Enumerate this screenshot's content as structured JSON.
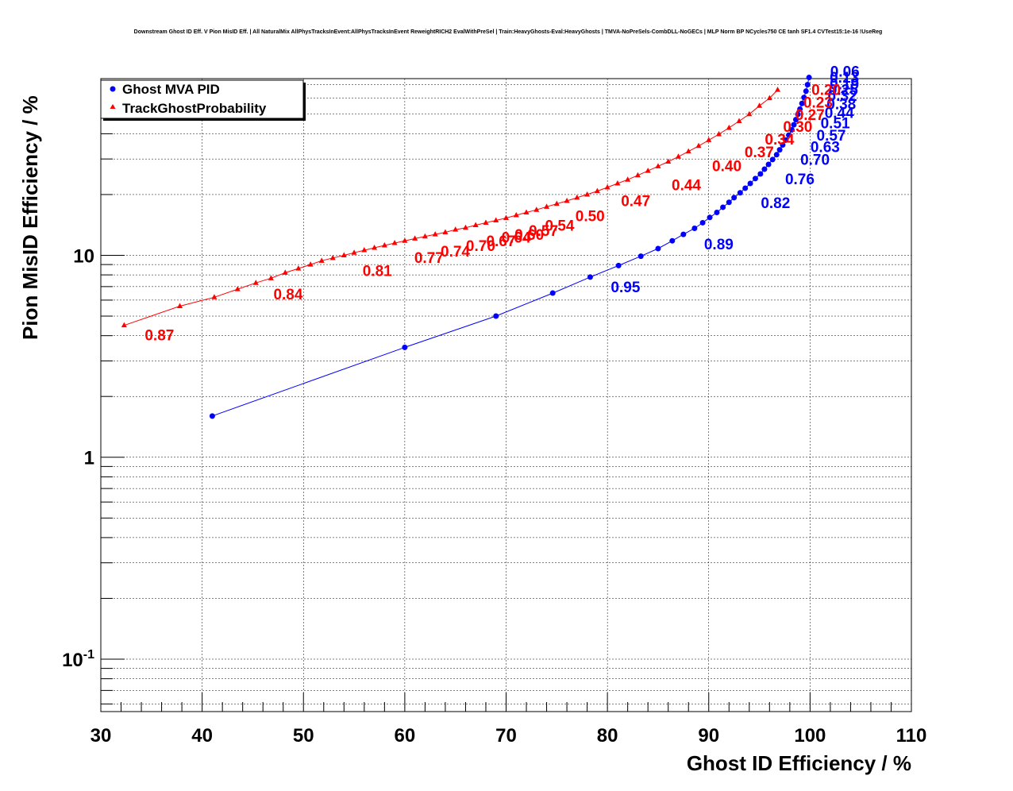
{
  "chart_data": {
    "type": "scatter",
    "title": "Downstream Ghost ID Eff. V Pion MisID Eff. | All NaturalMix AllPhysTracksInEvent:AllPhysTracksInEvent ReweightRICH2 EvalWithPreSel | Train:HeavyGhosts-Eval:HeavyGhosts | TMVA-NoPreSels-CombDLL-NoGECs | MLP Norm BP NCycles750 CE tanh SF1.4 CVTest15:1e-16 !UseReg",
    "xlabel": "Ghost ID Efficiency / %",
    "ylabel": "Pion MisID Efficiency / %",
    "xlim": [
      30,
      110
    ],
    "ylim": [
      0.055,
      75
    ],
    "yscale": "log",
    "grid": true,
    "legend_position": "top-left",
    "x_ticks": [
      "30",
      "40",
      "50",
      "60",
      "70",
      "80",
      "90",
      "100",
      "110"
    ],
    "y_ticks": [
      {
        "value": 0.1,
        "base": "10",
        "exp": "-1"
      },
      {
        "value": 1,
        "base": "1",
        "exp": ""
      },
      {
        "value": 10,
        "base": "10",
        "exp": ""
      }
    ],
    "series": [
      {
        "name": "Ghost MVA PID",
        "color": "#0000ff",
        "marker": "circle",
        "x": [
          41.0,
          60.0,
          69.0,
          74.6,
          78.3,
          81.1,
          83.3,
          85.0,
          86.4,
          87.5,
          88.6,
          89.4,
          90.1,
          90.8,
          91.4,
          92.0,
          92.5,
          93.1,
          93.6,
          94.1,
          94.6,
          95.1,
          95.5,
          95.9,
          96.3,
          96.7,
          97.0,
          97.3,
          97.6,
          97.9,
          98.2,
          98.4,
          98.6,
          98.8,
          99.0,
          99.2,
          99.4,
          99.6,
          99.75,
          99.9
        ],
        "y": [
          1.6,
          3.5,
          5.0,
          6.5,
          7.8,
          8.9,
          9.9,
          10.8,
          11.8,
          12.7,
          13.6,
          14.5,
          15.4,
          16.3,
          17.3,
          18.3,
          19.3,
          20.4,
          21.5,
          22.7,
          24.0,
          25.3,
          26.7,
          28.2,
          29.8,
          31.5,
          33.3,
          35.2,
          37.2,
          39.4,
          41.8,
          44.3,
          47.0,
          49.9,
          53.0,
          56.5,
          60.5,
          65.0,
          70.0,
          76.0
        ],
        "labels": [
          {
            "text": "0.95",
            "x": 78.3,
            "y": 7.8
          },
          {
            "text": "0.89",
            "x": 87.5,
            "y": 12.7
          },
          {
            "text": "0.82",
            "x": 93.1,
            "y": 20.4
          },
          {
            "text": "0.76",
            "x": 95.5,
            "y": 26.7
          },
          {
            "text": "0.70",
            "x": 97.0,
            "y": 33.3
          },
          {
            "text": "0.63",
            "x": 98.0,
            "y": 38.5
          },
          {
            "text": "0.57",
            "x": 98.6,
            "y": 44.0
          },
          {
            "text": "0.51",
            "x": 99.0,
            "y": 50.5
          },
          {
            "text": "0.44",
            "x": 99.4,
            "y": 57.0
          },
          {
            "text": "0.38",
            "x": 99.6,
            "y": 63.0
          },
          {
            "text": "0.32",
            "x": 99.7,
            "y": 69.0
          },
          {
            "text": "0.25",
            "x": 99.8,
            "y": 74.0
          },
          {
            "text": "0.19",
            "x": 99.9,
            "y": 79.0
          },
          {
            "text": "0.13",
            "x": 99.9,
            "y": 85.0
          },
          {
            "text": "0.06",
            "x": 99.95,
            "y": 91.0
          }
        ]
      },
      {
        "name": "TrackGhostProbability",
        "color": "#ff0000",
        "marker": "triangle",
        "x": [
          32.3,
          37.8,
          41.2,
          43.5,
          45.3,
          46.8,
          48.2,
          49.5,
          50.7,
          51.8,
          52.9,
          54.0,
          55.0,
          56.0,
          57.0,
          58.0,
          59.0,
          60.0,
          61.0,
          62.0,
          63.0,
          64.0,
          65.0,
          66.0,
          67.0,
          68.0,
          69.0,
          70.0,
          71.0,
          72.0,
          73.0,
          74.0,
          75.0,
          76.0,
          77.0,
          78.0,
          79.0,
          80.0,
          81.0,
          82.0,
          83.0,
          84.0,
          85.0,
          86.0,
          87.0,
          88.0,
          89.0,
          90.0,
          91.0,
          92.0,
          93.0,
          94.0,
          95.0,
          96.0,
          96.8
        ],
        "y": [
          4.5,
          5.6,
          6.2,
          6.8,
          7.3,
          7.7,
          8.2,
          8.6,
          9.0,
          9.4,
          9.7,
          10.0,
          10.3,
          10.6,
          10.9,
          11.2,
          11.5,
          11.8,
          12.1,
          12.4,
          12.7,
          13.0,
          13.4,
          13.7,
          14.1,
          14.5,
          14.9,
          15.3,
          15.8,
          16.3,
          16.8,
          17.4,
          18.0,
          18.6,
          19.3,
          20.0,
          20.8,
          21.7,
          22.7,
          23.7,
          24.9,
          26.2,
          27.6,
          29.1,
          30.8,
          32.7,
          34.8,
          37.2,
          39.8,
          42.8,
          46.2,
          50.0,
          55.0,
          60.0,
          66.0
        ],
        "labels": [
          {
            "text": "0.87",
            "x": 32.3,
            "y": 4.5
          },
          {
            "text": "0.84",
            "x": 45.0,
            "y": 7.2
          },
          {
            "text": "0.81",
            "x": 53.8,
            "y": 9.4
          },
          {
            "text": "0.77",
            "x": 58.9,
            "y": 10.9
          },
          {
            "text": "0.74",
            "x": 61.5,
            "y": 11.7
          },
          {
            "text": "0.70",
            "x": 64.0,
            "y": 12.5
          },
          {
            "text": "0.67",
            "x": 66.0,
            "y": 13.2
          },
          {
            "text": "0.64",
            "x": 67.5,
            "y": 13.7
          },
          {
            "text": "0.60",
            "x": 68.8,
            "y": 14.2
          },
          {
            "text": "0.57",
            "x": 70.2,
            "y": 14.8
          },
          {
            "text": "0.54",
            "x": 71.8,
            "y": 15.7
          },
          {
            "text": "0.50",
            "x": 74.8,
            "y": 17.5
          },
          {
            "text": "0.47",
            "x": 79.3,
            "y": 20.8
          },
          {
            "text": "0.44",
            "x": 84.3,
            "y": 25.0
          },
          {
            "text": "0.40",
            "x": 88.3,
            "y": 31.0
          },
          {
            "text": "0.37",
            "x": 91.5,
            "y": 36.4
          },
          {
            "text": "0.34",
            "x": 93.5,
            "y": 42.0
          },
          {
            "text": "0.30",
            "x": 95.3,
            "y": 48.5
          },
          {
            "text": "0.27",
            "x": 96.5,
            "y": 55.5
          },
          {
            "text": "0.23",
            "x": 97.3,
            "y": 64.0
          },
          {
            "text": "0.20",
            "x": 98.1,
            "y": 74.0
          }
        ]
      }
    ]
  }
}
